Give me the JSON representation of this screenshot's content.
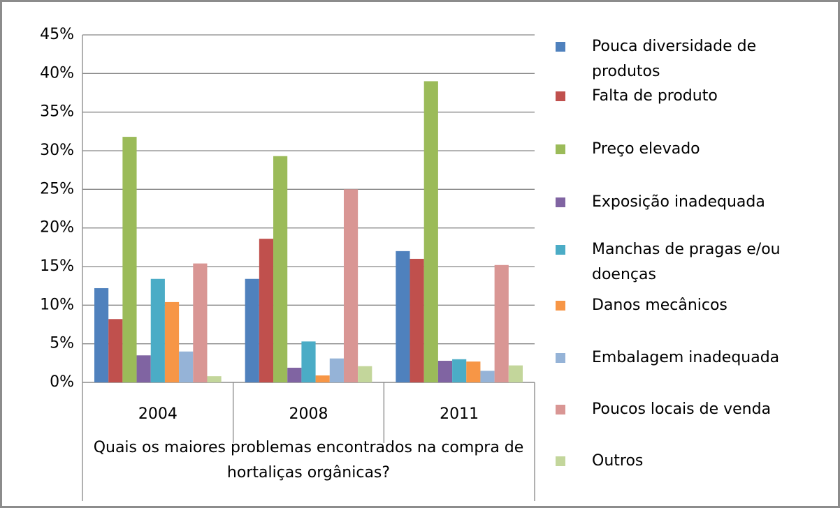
{
  "chart_data": {
    "type": "bar",
    "x_label": "Quais os maiores problemas encontrados na compra de hortaliças orgânicas?",
    "categories": [
      "2004",
      "2008",
      "2011"
    ],
    "series": [
      {
        "name": "Pouca diversidade de produtos",
        "color": "#4f81bd",
        "values": [
          12.2,
          13.4,
          17.0
        ]
      },
      {
        "name": "Falta de produto",
        "color": "#c0504d",
        "values": [
          8.2,
          18.6,
          16.0
        ]
      },
      {
        "name": "Preço elevado",
        "color": "#9bbb59",
        "values": [
          31.8,
          29.3,
          39.0
        ]
      },
      {
        "name": "Exposição inadequada",
        "color": "#8064a2",
        "values": [
          3.5,
          1.9,
          2.8
        ]
      },
      {
        "name": "Manchas de pragas e/ou doenças",
        "color": "#4bacc6",
        "values": [
          13.4,
          5.3,
          3.0
        ]
      },
      {
        "name": "Danos mecânicos",
        "color": "#f79646",
        "values": [
          10.4,
          0.9,
          2.7
        ]
      },
      {
        "name": "Embalagem inadequada",
        "color": "#95b3d7",
        "values": [
          4.0,
          3.1,
          1.5
        ]
      },
      {
        "name": "Poucos locais de venda",
        "color": "#d99694",
        "values": [
          15.4,
          25.0,
          15.2
        ]
      },
      {
        "name": "Outros",
        "color": "#c3d69b",
        "values": [
          0.8,
          2.1,
          2.2
        ]
      }
    ],
    "ylim": [
      0,
      45
    ],
    "yticks": [
      {
        "value": 0,
        "label": "0%"
      },
      {
        "value": 5,
        "label": "5%"
      },
      {
        "value": 10,
        "label": "10%"
      },
      {
        "value": 15,
        "label": "15%"
      },
      {
        "value": 20,
        "label": "20%"
      },
      {
        "value": 25,
        "label": "25%"
      },
      {
        "value": 30,
        "label": "30%"
      },
      {
        "value": 35,
        "label": "35%"
      },
      {
        "value": 40,
        "label": "40%"
      },
      {
        "value": 45,
        "label": "45%"
      }
    ],
    "grid": true,
    "legend": "right"
  }
}
